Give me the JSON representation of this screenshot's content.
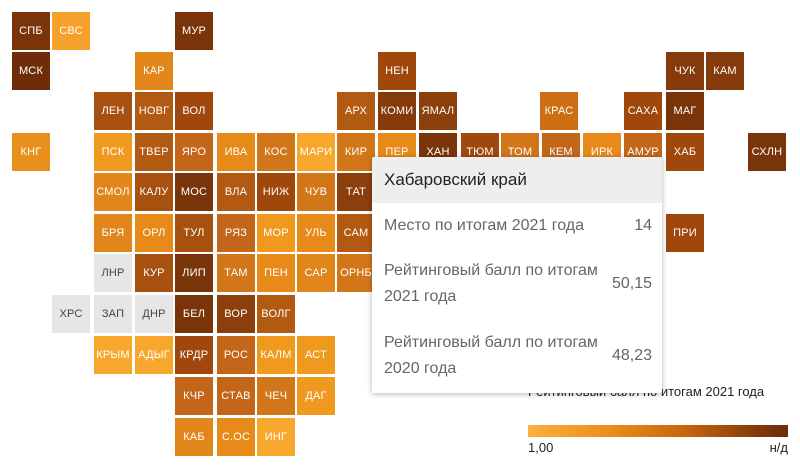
{
  "map": {
    "regions": [
      {
        "code": "СПБ",
        "c": "#7a3409"
      },
      {
        "code": "СВС",
        "c": "#f5a12a"
      },
      {
        "code": "МУР",
        "c": "#7a3409"
      },
      {
        "code": "МСК",
        "c": "#6e2d08"
      },
      {
        "code": "КАР",
        "c": "#e0861a"
      },
      {
        "code": "НЕН",
        "c": "#a0480c"
      },
      {
        "code": "ЧУК",
        "c": "#843a0b"
      },
      {
        "code": "КАМ",
        "c": "#843a0b"
      },
      {
        "code": "ЛЕН",
        "c": "#a85010"
      },
      {
        "code": "НОВГ",
        "c": "#b35a12"
      },
      {
        "code": "ВОЛ",
        "c": "#a0480c"
      },
      {
        "code": "АРХ",
        "c": "#b35a12"
      },
      {
        "code": "КОМИ",
        "c": "#843a0b"
      },
      {
        "code": "ЯМАЛ",
        "c": "#8a3f0c"
      },
      {
        "code": "КРАС",
        "c": "#cc6e14"
      },
      {
        "code": "САХА",
        "c": "#a0480c"
      },
      {
        "code": "МАГ",
        "c": "#7a3409"
      },
      {
        "code": "КНГ",
        "c": "#e8901e"
      },
      {
        "code": "ПСК",
        "c": "#f0991f"
      },
      {
        "code": "ТВЕР",
        "c": "#b35a12"
      },
      {
        "code": "ЯРО",
        "c": "#c4661a"
      },
      {
        "code": "ИВА",
        "c": "#e88a1a"
      },
      {
        "code": "КОС",
        "c": "#d2761a"
      },
      {
        "code": "МАРИ",
        "c": "#f7a82c"
      },
      {
        "code": "КИР",
        "c": "#d2761a"
      },
      {
        "code": "ПЕР",
        "c": "#e88a1a"
      },
      {
        "code": "ХАН",
        "c": "#7a3409"
      },
      {
        "code": "ТЮМ",
        "c": "#a0480c"
      },
      {
        "code": "ТОМ",
        "c": "#d2761a"
      },
      {
        "code": "КЕМ",
        "c": "#c4661a"
      },
      {
        "code": "ИРК",
        "c": "#e88a1a"
      },
      {
        "code": "АМУР",
        "c": "#c4661a"
      },
      {
        "code": "ХАБ",
        "c": "#a0480c"
      },
      {
        "code": "СХЛН",
        "c": "#7a3409"
      },
      {
        "code": "СМОЛ",
        "c": "#e0861a"
      },
      {
        "code": "КАЛУ",
        "c": "#a85010"
      },
      {
        "code": "МОС",
        "c": "#7a3409"
      },
      {
        "code": "ВЛА",
        "c": "#b35a12"
      },
      {
        "code": "НИЖ",
        "c": "#a0480c"
      },
      {
        "code": "ЧУВ",
        "c": "#d2761a"
      },
      {
        "code": "ТАТ",
        "c": "#8a3f0c"
      },
      {
        "code": "БРЯ",
        "c": "#e0861a"
      },
      {
        "code": "ОРЛ",
        "c": "#e88a1a"
      },
      {
        "code": "ТУЛ",
        "c": "#a85010"
      },
      {
        "code": "РЯЗ",
        "c": "#c4661a"
      },
      {
        "code": "МОР",
        "c": "#f0991f"
      },
      {
        "code": "УЛЬ",
        "c": "#e88a1a"
      },
      {
        "code": "САМ",
        "c": "#b35a12"
      },
      {
        "code": "ПРИ",
        "c": "#a0480c"
      },
      {
        "code": "ЛНР",
        "c": "#e6e6e6",
        "light": true
      },
      {
        "code": "КУР",
        "c": "#a85010"
      },
      {
        "code": "ЛИП",
        "c": "#7a3409"
      },
      {
        "code": "ТАМ",
        "c": "#d2761a"
      },
      {
        "code": "ПЕН",
        "c": "#e88a1a"
      },
      {
        "code": "САР",
        "c": "#e0861a"
      },
      {
        "code": "ОРНБ",
        "c": "#d2761a"
      },
      {
        "code": "ХРС",
        "c": "#e6e6e6",
        "light": true
      },
      {
        "code": "ЗАП",
        "c": "#e6e6e6",
        "light": true
      },
      {
        "code": "ДНР",
        "c": "#e6e6e6",
        "light": true
      },
      {
        "code": "БЕЛ",
        "c": "#7a3409"
      },
      {
        "code": "ВОР",
        "c": "#8a3f0c"
      },
      {
        "code": "ВОЛГ",
        "c": "#b35a12"
      },
      {
        "code": "КРЫМ",
        "c": "#f7a82c"
      },
      {
        "code": "АДЫГ",
        "c": "#f7a82c"
      },
      {
        "code": "КРДР",
        "c": "#a0480c"
      },
      {
        "code": "РОС",
        "c": "#c4661a"
      },
      {
        "code": "КАЛМ",
        "c": "#f0991f"
      },
      {
        "code": "АСТ",
        "c": "#f0991f"
      },
      {
        "code": "КЧР",
        "c": "#c4661a"
      },
      {
        "code": "СТАВ",
        "c": "#c4661a"
      },
      {
        "code": "ЧЕЧ",
        "c": "#d2761a"
      },
      {
        "code": "ДАГ",
        "c": "#f0991f"
      },
      {
        "code": "КАБ",
        "c": "#e0861a"
      },
      {
        "code": "С.ОС",
        "c": "#e88a1a"
      },
      {
        "code": "ИНГ",
        "c": "#f7a82c"
      }
    ]
  },
  "tooltip": {
    "title": "Хабаровский край",
    "rows": [
      {
        "label": "Место по итогам 2021 года",
        "value": "14"
      },
      {
        "label": "Рейтинговый балл по итогам 2021 года",
        "value": "50,15"
      },
      {
        "label": "Рейтинговый балл по итогам 2020 года",
        "value": "48,23"
      }
    ]
  },
  "legend": {
    "title": "Рейтинговый балл по итогам 2021 года",
    "min_label": "1,00",
    "max_label": "н/д",
    "colors": [
      "#fbb040",
      "#6b2c08"
    ]
  }
}
